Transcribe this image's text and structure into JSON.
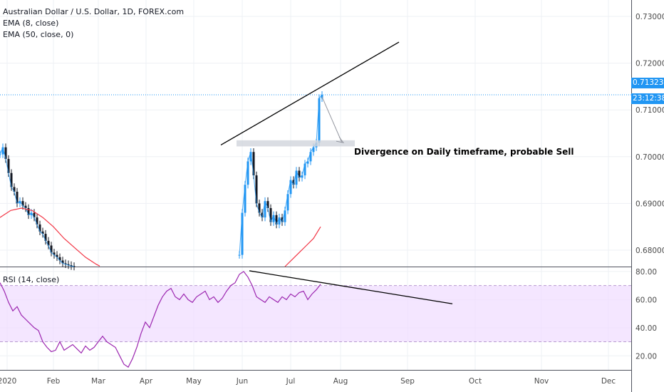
{
  "legend": {
    "symbol": "Australian Dollar / U.S. Dollar, 1D, FOREX.com",
    "ema8": "EMA (8, close)",
    "ema50": "EMA (50, close, 0)",
    "rsi": "RSI (14, close)"
  },
  "annotation": "Divergence on Daily timeframe, probable Sell",
  "price_tag": {
    "value": "0.71323",
    "countdown": "23:12:38",
    "color": "#2196f3"
  },
  "colors": {
    "up": "#2196f3",
    "down": "#131722",
    "ema8": "#2196f3",
    "ema50": "#f23645",
    "rsi": "#9c27b0",
    "rsi_band": "#efdcff",
    "grid": "#eef0f4",
    "axis_text": "#4a4a4a",
    "trendline": "#000000"
  },
  "chart_data": [
    {
      "type": "line",
      "title": "Australian Dollar / U.S. Dollar, 1D, FOREX.com",
      "x_labels": [
        "2020",
        "Feb",
        "Mar",
        "Apr",
        "May",
        "Jun",
        "Jul",
        "Aug",
        "Sep",
        "Oct",
        "Nov",
        "Dec"
      ],
      "y_ticks": [
        "0.73000",
        "0.72000",
        "0.71000",
        "0.70000",
        "0.69000",
        "0.68000"
      ],
      "ylim": [
        0.6765,
        0.7335
      ],
      "last_price": 0.71323,
      "visible_close_segments": [
        {
          "name": "Jan–Feb",
          "x": [
            0,
            4,
            8,
            12,
            16,
            20,
            24,
            28,
            32,
            36,
            40,
            44,
            48,
            52,
            56,
            60,
            64,
            68,
            72,
            76,
            80,
            84,
            88,
            92,
            96,
            100,
            104
          ],
          "values": [
            0.7005,
            0.702,
            0.6995,
            0.6965,
            0.6935,
            0.6925,
            0.69,
            0.6905,
            0.6895,
            0.689,
            0.6875,
            0.688,
            0.687,
            0.6855,
            0.684,
            0.6835,
            0.682,
            0.681,
            0.6795,
            0.679,
            0.6785,
            0.6778,
            0.6772,
            0.677,
            0.6768,
            0.6766,
            0.6765
          ]
        },
        {
          "name": "Jun–Jul",
          "x": [
            336,
            340,
            344,
            348,
            352,
            356,
            360,
            364,
            368,
            372,
            376,
            380,
            384,
            388,
            392,
            396,
            400,
            404,
            408,
            412,
            416,
            420,
            424,
            428,
            432,
            436,
            440,
            444,
            448,
            452
          ],
          "values": [
            0.679,
            0.688,
            0.694,
            0.699,
            0.701,
            0.696,
            0.69,
            0.688,
            0.687,
            0.6905,
            0.689,
            0.686,
            0.6875,
            0.6855,
            0.687,
            0.686,
            0.6885,
            0.692,
            0.695,
            0.694,
            0.697,
            0.6955,
            0.696,
            0.6985,
            0.699,
            0.701,
            0.702,
            0.703,
            0.7125,
            0.7132
          ]
        }
      ],
      "ema50_segments": [
        {
          "x": [
            0,
            15,
            30,
            45,
            60,
            75,
            90,
            105,
            120,
            135,
            140
          ],
          "values": [
            0.687,
            0.6885,
            0.689,
            0.6885,
            0.687,
            0.685,
            0.6825,
            0.6805,
            0.6785,
            0.677,
            0.6766
          ]
        },
        {
          "x": [
            400,
            410,
            420,
            430,
            440,
            450
          ],
          "values": [
            0.6765,
            0.678,
            0.6795,
            0.681,
            0.6825,
            0.685
          ]
        }
      ],
      "annotations": [
        "Divergence on Daily timeframe, probable Sell"
      ]
    },
    {
      "type": "line",
      "title": "RSI (14, close)",
      "y_ticks": [
        "80.00",
        "60.00",
        "40.00",
        "20.00"
      ],
      "ylim": [
        10,
        83
      ],
      "band": [
        30,
        70
      ],
      "series": [
        {
          "name": "RSI (14, close)",
          "x": [
            0,
            6,
            12,
            18,
            24,
            30,
            36,
            42,
            48,
            54,
            60,
            66,
            72,
            78,
            84,
            90,
            96,
            102,
            108,
            114,
            120,
            126,
            132,
            138,
            144,
            150,
            156,
            162,
            168,
            174,
            180,
            186,
            192,
            198,
            204,
            210,
            216,
            222,
            228,
            234,
            240,
            246,
            252,
            258,
            264,
            270,
            276,
            282,
            288,
            294,
            300,
            306,
            312,
            318,
            324,
            330,
            336,
            342,
            348,
            354,
            360,
            366,
            372,
            378,
            384,
            390,
            396,
            402,
            408,
            414,
            420,
            426,
            432,
            438,
            444,
            450
          ],
          "values": [
            72,
            66,
            58,
            52,
            55,
            49,
            46,
            43,
            40,
            38,
            30,
            26,
            23,
            24,
            30,
            24,
            26,
            28,
            25,
            22,
            27,
            24,
            26,
            30,
            34,
            30,
            28,
            26,
            20,
            14,
            12,
            18,
            26,
            36,
            44,
            40,
            48,
            56,
            62,
            66,
            68,
            62,
            60,
            64,
            60,
            58,
            62,
            64,
            66,
            60,
            62,
            58,
            61,
            66,
            70,
            72,
            78,
            80,
            76,
            70,
            62,
            60,
            58,
            62,
            60,
            58,
            62,
            60,
            64,
            62,
            65,
            66,
            60,
            64,
            67,
            71
          ]
        }
      ]
    }
  ]
}
